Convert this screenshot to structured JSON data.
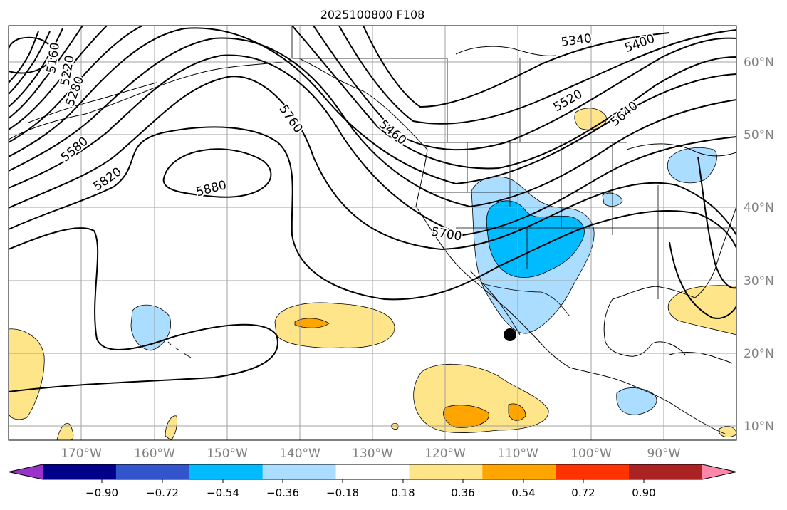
{
  "title": "2025100800 F108",
  "lon_labels": [
    "170°W",
    "160°W",
    "150°W",
    "140°W",
    "130°W",
    "120°W",
    "110°W",
    "100°W",
    "90°W"
  ],
  "lat_labels": [
    "60°N",
    "50°N",
    "40°N",
    "30°N",
    "20°N",
    "10°N"
  ],
  "contour_labels": [
    "5160",
    "5220",
    "5280",
    "5340",
    "5400",
    "5460",
    "5520",
    "5580",
    "5640",
    "5700",
    "5760",
    "5820",
    "5880"
  ],
  "colorbar": {
    "colors": [
      "#9933cc",
      "#000088",
      "#3355cc",
      "#00bbff",
      "#aaddff",
      "#ffffff",
      "#ffe58a",
      "#ffa500",
      "#ff3300",
      "#aa2222",
      "#ff88aa"
    ],
    "tick_labels": [
      "−0.90",
      "−0.72",
      "−0.54",
      "−0.36",
      "−0.18",
      "0.18",
      "0.36",
      "0.54",
      "0.72",
      "0.90"
    ]
  }
}
